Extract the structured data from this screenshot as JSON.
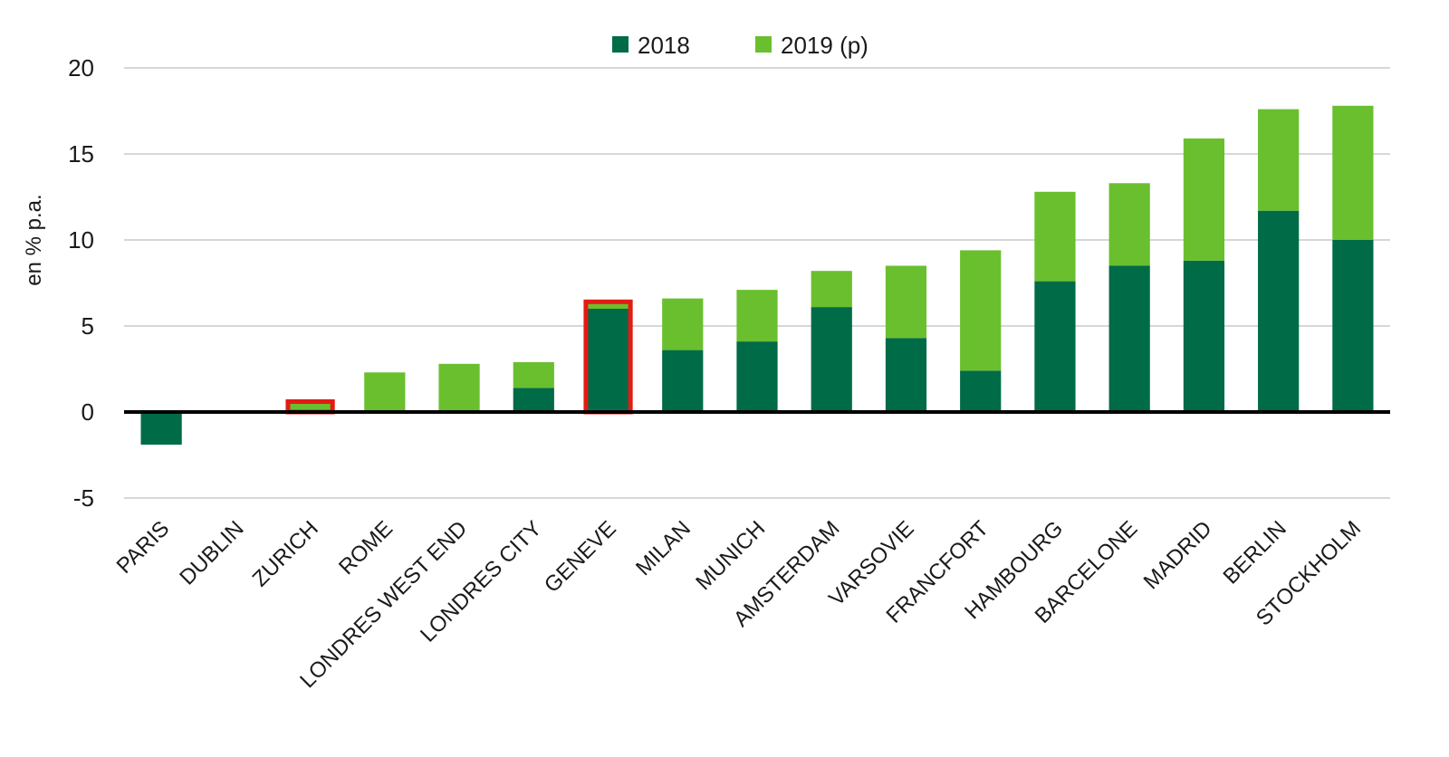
{
  "chart_data": {
    "type": "bar",
    "stacked": true,
    "title": "",
    "xlabel": "",
    "ylabel": "en % p.a.",
    "ylim": [
      -5,
      20
    ],
    "yticks": [
      -5,
      0,
      5,
      10,
      15,
      20
    ],
    "grid": true,
    "legend_position": "top-center",
    "categories": [
      "PARIS",
      "DUBLIN",
      "ZURICH",
      "ROME",
      "LONDRES WEST END",
      "LONDRES CITY",
      "GENEVE",
      "MILAN",
      "MUNICH",
      "AMSTERDAM",
      "VARSOVIE",
      "FRANCFORT",
      "HAMBOURG",
      "BARCELONE",
      "MADRID",
      "BERLIN",
      "STOCKHOLM"
    ],
    "series": [
      {
        "name": "2018",
        "color": "#006b47",
        "values": [
          -1.9,
          0,
          0,
          0,
          0,
          1.4,
          6.0,
          3.6,
          4.1,
          6.1,
          4.3,
          2.4,
          7.6,
          8.5,
          8.8,
          11.7,
          10.0
        ]
      },
      {
        "name": "2019 (p)",
        "color": "#6abf2e",
        "values": [
          0,
          0,
          0.5,
          2.3,
          2.8,
          1.5,
          0.3,
          3.0,
          3.0,
          2.1,
          4.2,
          7.0,
          5.2,
          4.8,
          7.1,
          5.9,
          7.8
        ]
      }
    ],
    "highlighted_categories": [
      "ZURICH",
      "GENEVE"
    ],
    "highlight_color": "#e31b14"
  }
}
